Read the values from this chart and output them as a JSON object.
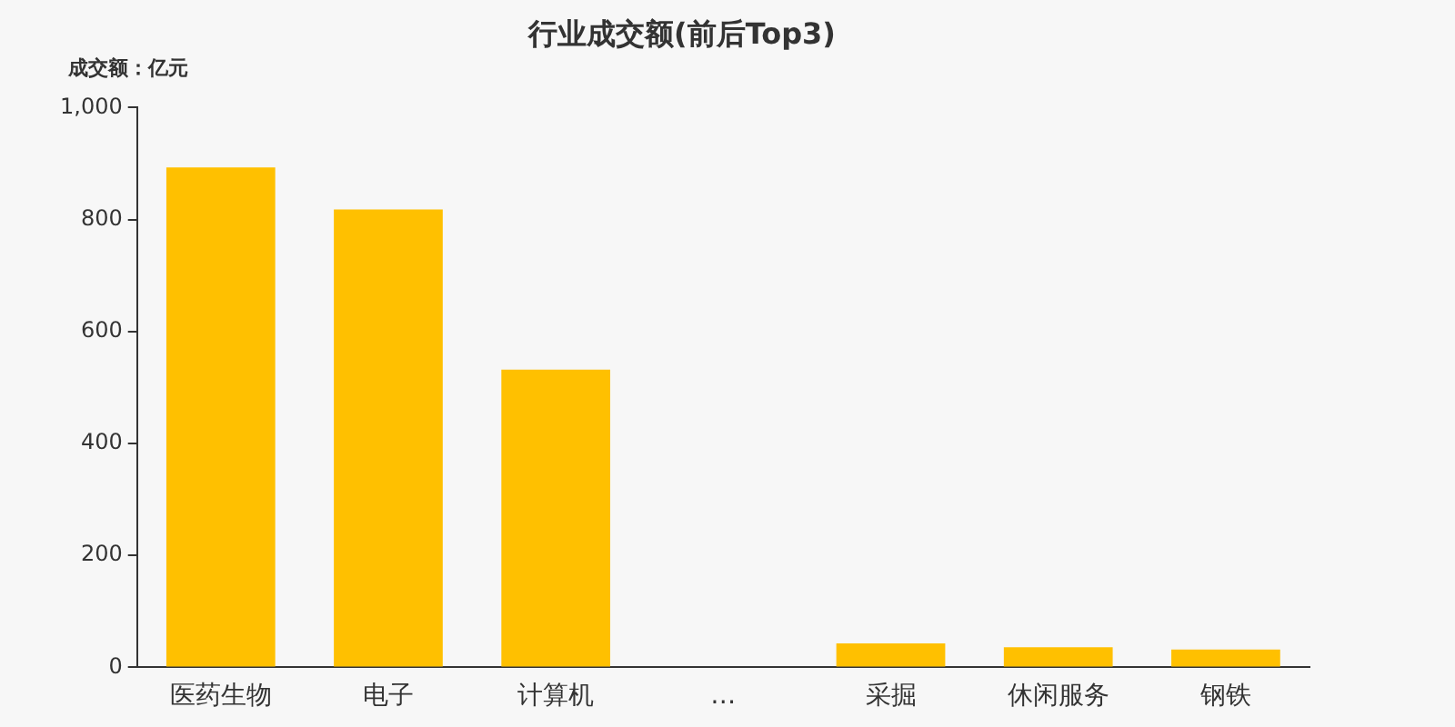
{
  "chart_data": {
    "type": "bar",
    "title": "行业成交额(前后Top3)",
    "ylabel": "成交额：亿元",
    "categories": [
      "医药生物",
      "电子",
      "计算机",
      "…",
      "采掘",
      "休闲服务",
      "钢铁"
    ],
    "values": [
      893,
      818,
      532,
      null,
      43,
      36,
      32
    ],
    "color": "#ffc000",
    "ylim": [
      0,
      1000
    ],
    "yticks": [
      0,
      200,
      400,
      600,
      800,
      {
        "value": 1000,
        "label": "1,000"
      }
    ],
    "grid": false,
    "legend": false
  }
}
